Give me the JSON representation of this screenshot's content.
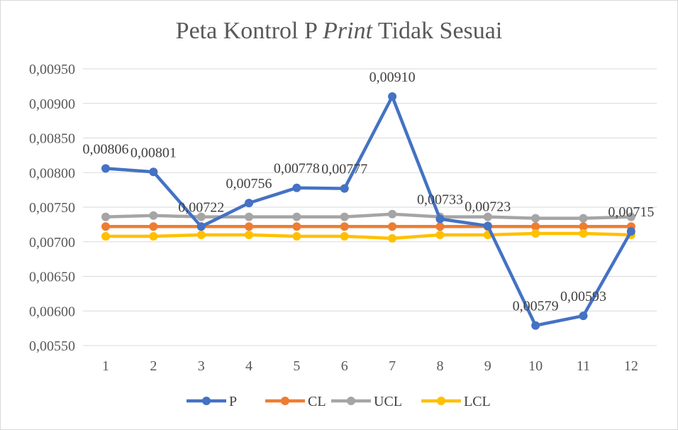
{
  "chart_data": {
    "type": "line",
    "title_parts": {
      "prefix": "Peta Kontrol P",
      "italic": "Print",
      "suffix": "Tidak Sesuai"
    },
    "x": [
      "1",
      "2",
      "3",
      "4",
      "5",
      "6",
      "7",
      "8",
      "9",
      "10",
      "11",
      "12"
    ],
    "y_ticks": [
      "0,00550",
      "0,00600",
      "0,00650",
      "0,00700",
      "0,00750",
      "0,00800",
      "0,00850",
      "0,00900",
      "0,00950"
    ],
    "ylim": [
      0.0055,
      0.0095
    ],
    "grid": true,
    "legend_position": "bottom",
    "series": [
      {
        "name": "P",
        "color": "#4472C4",
        "values": [
          0.00806,
          0.00801,
          0.00722,
          0.00756,
          0.00778,
          0.00777,
          0.0091,
          0.00733,
          0.00723,
          0.00579,
          0.00593,
          0.00715
        ],
        "labels": [
          "0,00806",
          "0,00801",
          "0,00722",
          "0,00756",
          "0,00778",
          "0,00777",
          "0,00910",
          "0,00733",
          "0,00723",
          "0,00579",
          "0,00593",
          "0,00715"
        ]
      },
      {
        "name": "CL",
        "color": "#ED7D31",
        "values": [
          0.00722,
          0.00722,
          0.00722,
          0.00722,
          0.00722,
          0.00722,
          0.00722,
          0.00722,
          0.00722,
          0.00722,
          0.00722,
          0.00722
        ]
      },
      {
        "name": "UCL",
        "color": "#A5A5A5",
        "values": [
          0.00736,
          0.00738,
          0.00736,
          0.00736,
          0.00736,
          0.00736,
          0.0074,
          0.00736,
          0.00736,
          0.00734,
          0.00734,
          0.00736
        ]
      },
      {
        "name": "LCL",
        "color": "#FFC000",
        "values": [
          0.00708,
          0.00708,
          0.0071,
          0.0071,
          0.00708,
          0.00708,
          0.00705,
          0.0071,
          0.0071,
          0.00712,
          0.00712,
          0.0071
        ]
      }
    ]
  }
}
